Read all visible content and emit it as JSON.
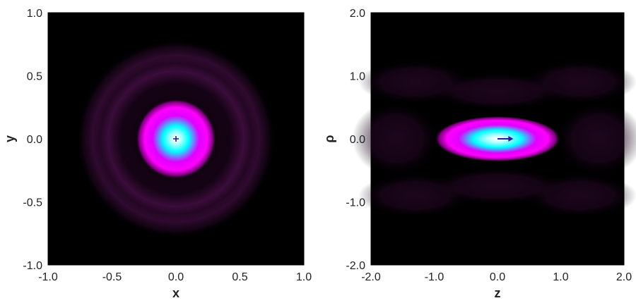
{
  "chart_data": [
    {
      "type": "heatmap",
      "xlabel": "x",
      "ylabel": "y",
      "xlim": [
        -1.0,
        1.0
      ],
      "ylim": [
        -1.0,
        1.0
      ],
      "x_ticks": [
        "-1.0",
        "-0.5",
        "0.0",
        "0.5",
        "1.0"
      ],
      "y_ticks": [
        "1.0",
        "0.5",
        "0.0",
        "-0.5",
        "-1.0"
      ],
      "x_tick_values": [
        -1.0,
        -0.5,
        0.0,
        0.5,
        1.0
      ],
      "y_tick_values": [
        1.0,
        0.5,
        0.0,
        -0.5,
        -1.0
      ],
      "colormap": [
        "#000000",
        "#3a0a3a",
        "#ff00ff",
        "#00ffff",
        "#ffffff"
      ],
      "features": {
        "central_spot_radius": 0.3,
        "rings": [
          0.55,
          0.72
        ],
        "center_marker": [
          0.0,
          0.0
        ]
      },
      "grid": false
    },
    {
      "type": "heatmap",
      "xlabel": "z",
      "ylabel": "ρ",
      "xlim": [
        -2.0,
        2.0
      ],
      "ylim": [
        -2.0,
        2.0
      ],
      "x_ticks": [
        "-2.0",
        "-1.0",
        "0.0",
        "1.0",
        "2.0"
      ],
      "y_ticks": [
        "2.0",
        "1.0",
        "0.0",
        "-1.0",
        "-2.0"
      ],
      "x_tick_values": [
        -2.0,
        -1.0,
        0.0,
        1.0,
        2.0
      ],
      "y_tick_values": [
        2.0,
        1.0,
        0.0,
        -1.0,
        -2.0
      ],
      "colormap": [
        "#000000",
        "#3a0a3a",
        "#ff00ff",
        "#00ffff",
        "#ffffff"
      ],
      "features": {
        "central_spot_half_width_z": 0.95,
        "central_spot_half_width_rho": 0.25,
        "arrow_from": [
          0.0,
          0.0
        ],
        "arrow_to": [
          0.25,
          0.0
        ]
      },
      "grid": false
    }
  ]
}
